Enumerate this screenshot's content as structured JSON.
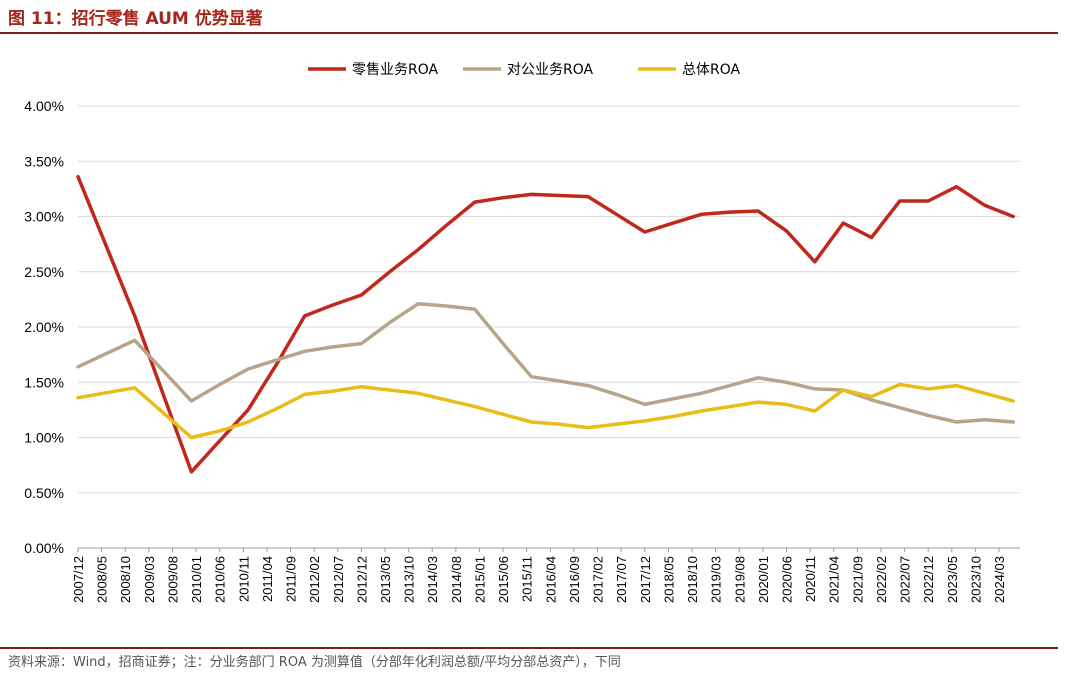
{
  "header": {
    "title": "图 11：招行零售 AUM 优势显著"
  },
  "footer": {
    "source": "资料来源：Wind，招商证券；注：分业务部门 ROA 为测算值（分部年化利润总额/平均分部总资产），下同"
  },
  "chart_data": {
    "type": "line",
    "title": "",
    "xlabel": "",
    "ylabel": "",
    "y_tick_format": "percent_2dp",
    "ylim": [
      0,
      0.04
    ],
    "y_ticks": [
      0,
      0.005,
      0.01,
      0.015,
      0.02,
      0.025,
      0.03,
      0.035,
      0.04
    ],
    "grid": "horizontal",
    "legend_position": "top-center",
    "x_tick_labels": [
      "2007/12",
      "2008/05",
      "2008/10",
      "2009/03",
      "2009/08",
      "2010/01",
      "2010/06",
      "2010/11",
      "2011/04",
      "2011/09",
      "2012/02",
      "2012/07",
      "2012/12",
      "2013/05",
      "2013/10",
      "2014/03",
      "2014/08",
      "2015/01",
      "2015/06",
      "2015/11",
      "2016/04",
      "2016/09",
      "2017/02",
      "2017/07",
      "2017/12",
      "2018/05",
      "2018/10",
      "2019/03",
      "2019/08",
      "2020/01",
      "2020/06",
      "2020/11",
      "2021/04",
      "2021/09",
      "2022/02",
      "2022/07",
      "2022/12",
      "2023/05",
      "2023/10",
      "2024/03"
    ],
    "series": [
      {
        "name": "零售业务ROA",
        "color": "#c0281b",
        "points": [
          [
            "2007/12",
            0.0336
          ],
          [
            "2008/12",
            0.021
          ],
          [
            "2009/12",
            0.0069
          ],
          [
            "2010/06",
            0.0097
          ],
          [
            "2010/12",
            0.0125
          ],
          [
            "2011/06",
            0.0166
          ],
          [
            "2011/12",
            0.021
          ],
          [
            "2012/06",
            0.022
          ],
          [
            "2012/12",
            0.0229
          ],
          [
            "2013/06",
            0.025
          ],
          [
            "2013/12",
            0.027
          ],
          [
            "2014/06",
            0.0292
          ],
          [
            "2014/12",
            0.0313
          ],
          [
            "2015/06",
            0.0317
          ],
          [
            "2015/12",
            0.032
          ],
          [
            "2016/06",
            0.0319
          ],
          [
            "2016/12",
            0.0318
          ],
          [
            "2017/06",
            0.0302
          ],
          [
            "2017/12",
            0.0286
          ],
          [
            "2018/06",
            0.0294
          ],
          [
            "2018/12",
            0.0302
          ],
          [
            "2019/06",
            0.0304
          ],
          [
            "2019/12",
            0.0305
          ],
          [
            "2020/06",
            0.0287
          ],
          [
            "2020/12",
            0.0259
          ],
          [
            "2021/06",
            0.0294
          ],
          [
            "2021/12",
            0.0281
          ],
          [
            "2022/06",
            0.0314
          ],
          [
            "2022/12",
            0.0314
          ],
          [
            "2023/06",
            0.0327
          ],
          [
            "2023/12",
            0.031
          ],
          [
            "2024/06",
            0.03
          ]
        ]
      },
      {
        "name": "对公业务ROA",
        "color": "#b8a48a",
        "points": [
          [
            "2007/12",
            0.0164
          ],
          [
            "2008/12",
            0.0188
          ],
          [
            "2009/12",
            0.0133
          ],
          [
            "2010/06",
            0.0148
          ],
          [
            "2010/12",
            0.0162
          ],
          [
            "2011/06",
            0.017
          ],
          [
            "2011/12",
            0.0178
          ],
          [
            "2012/06",
            0.0182
          ],
          [
            "2012/12",
            0.0185
          ],
          [
            "2013/06",
            0.0204
          ],
          [
            "2013/12",
            0.0221
          ],
          [
            "2014/06",
            0.0219
          ],
          [
            "2014/12",
            0.0216
          ],
          [
            "2015/06",
            0.0185
          ],
          [
            "2015/12",
            0.0155
          ],
          [
            "2016/06",
            0.0151
          ],
          [
            "2016/12",
            0.0147
          ],
          [
            "2017/06",
            0.0139
          ],
          [
            "2017/12",
            0.013
          ],
          [
            "2018/06",
            0.0135
          ],
          [
            "2018/12",
            0.014
          ],
          [
            "2019/06",
            0.0147
          ],
          [
            "2019/12",
            0.0154
          ],
          [
            "2020/06",
            0.015
          ],
          [
            "2020/12",
            0.0144
          ],
          [
            "2021/06",
            0.0143
          ],
          [
            "2021/12",
            0.0134
          ],
          [
            "2022/06",
            0.0127
          ],
          [
            "2022/12",
            0.012
          ],
          [
            "2023/06",
            0.0114
          ],
          [
            "2023/12",
            0.0116
          ],
          [
            "2024/06",
            0.0114
          ]
        ]
      },
      {
        "name": "总体ROA",
        "color": "#e8bd18",
        "points": [
          [
            "2007/12",
            0.0136
          ],
          [
            "2008/12",
            0.0145
          ],
          [
            "2009/12",
            0.01
          ],
          [
            "2010/06",
            0.0106
          ],
          [
            "2010/12",
            0.0114
          ],
          [
            "2011/06",
            0.0126
          ],
          [
            "2011/12",
            0.0139
          ],
          [
            "2012/06",
            0.0142
          ],
          [
            "2012/12",
            0.0146
          ],
          [
            "2013/06",
            0.0143
          ],
          [
            "2013/12",
            0.014
          ],
          [
            "2014/06",
            0.0134
          ],
          [
            "2014/12",
            0.0128
          ],
          [
            "2015/06",
            0.0121
          ],
          [
            "2015/12",
            0.0114
          ],
          [
            "2016/06",
            0.0112
          ],
          [
            "2016/12",
            0.0109
          ],
          [
            "2017/06",
            0.0112
          ],
          [
            "2017/12",
            0.0115
          ],
          [
            "2018/06",
            0.0119
          ],
          [
            "2018/12",
            0.0124
          ],
          [
            "2019/06",
            0.0128
          ],
          [
            "2019/12",
            0.0132
          ],
          [
            "2020/06",
            0.013
          ],
          [
            "2020/12",
            0.0124
          ],
          [
            "2021/06",
            0.0143
          ],
          [
            "2021/12",
            0.0137
          ],
          [
            "2022/06",
            0.0148
          ],
          [
            "2022/12",
            0.0144
          ],
          [
            "2023/06",
            0.0147
          ],
          [
            "2023/12",
            0.014
          ],
          [
            "2024/06",
            0.0133
          ]
        ]
      }
    ]
  }
}
